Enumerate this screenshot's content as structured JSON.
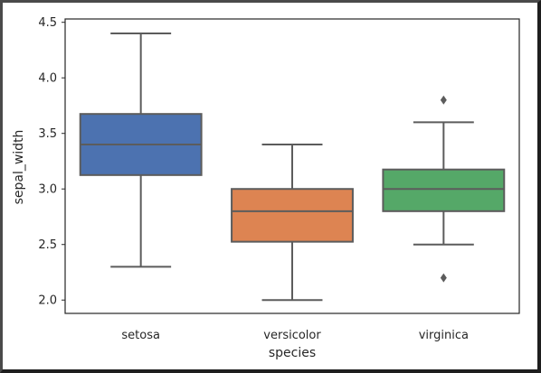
{
  "chart_data": {
    "type": "box",
    "title": "",
    "xlabel": "species",
    "ylabel": "sepal_width",
    "ylim": [
      1.88,
      4.53
    ],
    "yticks": [
      {
        "value": 2.0,
        "label": "2.0"
      },
      {
        "value": 2.5,
        "label": "2.5"
      },
      {
        "value": 3.0,
        "label": "3.0"
      },
      {
        "value": 3.5,
        "label": "3.5"
      },
      {
        "value": 4.0,
        "label": "4.0"
      },
      {
        "value": 4.5,
        "label": "4.5"
      }
    ],
    "grid": false,
    "legend": "none",
    "categories": [
      "setosa",
      "versicolor",
      "virginica"
    ],
    "boxes": [
      {
        "category": "setosa",
        "whisker_low": 2.3,
        "q1": 3.125,
        "median": 3.4,
        "q3": 3.675,
        "whisker_high": 4.4,
        "outliers": [],
        "color": "#4c72b0"
      },
      {
        "category": "versicolor",
        "whisker_low": 2.0,
        "q1": 2.525,
        "median": 2.8,
        "q3": 3.0,
        "whisker_high": 3.4,
        "outliers": [],
        "color": "#dd8452"
      },
      {
        "category": "virginica",
        "whisker_low": 2.5,
        "q1": 2.8,
        "median": 3.0,
        "q3": 3.175,
        "whisker_high": 3.6,
        "outliers": [
          3.8,
          2.2
        ],
        "color": "#55a868"
      }
    ],
    "line_color": "#5c5c5c",
    "axis_color": "#262626"
  }
}
